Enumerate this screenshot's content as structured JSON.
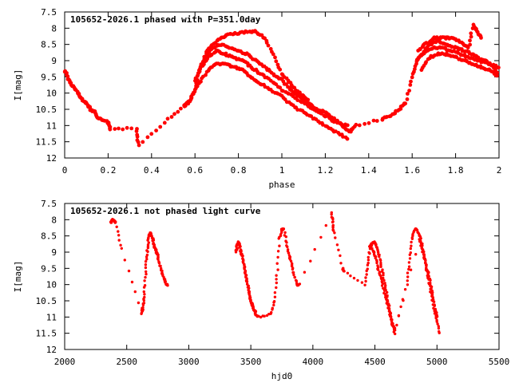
{
  "chart_data": [
    {
      "type": "scatter",
      "title": "105652-2026.1 phased with P=351.0day",
      "xlabel": "phase",
      "ylabel": "I[mag]",
      "xlim": [
        0,
        2
      ],
      "ylim": [
        12,
        7.5
      ],
      "y_inverted": true,
      "grid": false,
      "legend": "none",
      "marker_color": "#ff0000",
      "xticks": [
        0,
        0.2,
        0.4,
        0.6,
        0.8,
        1,
        1.2,
        1.4,
        1.6,
        1.8,
        2
      ],
      "xtick_labels": [
        "0",
        "0.2",
        "0.4",
        "0.6",
        "0.8",
        "1",
        "1.2",
        "1.4",
        "1.6",
        "1.8",
        "2"
      ],
      "yticks": [
        7.5,
        8,
        8.5,
        9,
        9.5,
        10,
        10.5,
        11,
        11.5,
        12
      ],
      "ytick_labels": [
        "7.5",
        "8",
        "8.5",
        "9",
        "9.5",
        "10",
        "10.5",
        "11",
        "11.5",
        "12"
      ],
      "series": [
        {
          "x": [
            0.0,
            0.02,
            0.04,
            0.06,
            0.08,
            0.1,
            0.12,
            0.14,
            0.16,
            0.2,
            0.21,
            0.33,
            0.34,
            0.46,
            0.55,
            0.57,
            0.6,
            0.62,
            0.65,
            0.68,
            0.72,
            0.76,
            0.8,
            0.84,
            0.88,
            0.92,
            0.96,
            1.0,
            1.04,
            1.08,
            1.12,
            1.16,
            1.2,
            1.24,
            1.28,
            1.31,
            1.34,
            1.46,
            1.5,
            1.54,
            1.57,
            1.6,
            1.62,
            1.65,
            1.68,
            1.72,
            1.76,
            1.8,
            1.84,
            1.88,
            1.9,
            1.93,
            1.96,
            2.0
          ],
          "y": [
            9.3,
            9.6,
            9.8,
            10.0,
            10.2,
            10.3,
            10.5,
            10.6,
            10.8,
            10.9,
            11.1,
            11.1,
            11.6,
            10.9,
            10.4,
            10.3,
            9.9,
            9.3,
            8.9,
            8.6,
            8.5,
            8.6,
            8.7,
            8.8,
            9.0,
            9.2,
            9.4,
            9.6,
            9.9,
            10.1,
            10.3,
            10.5,
            10.6,
            10.8,
            11.0,
            11.2,
            11.0,
            10.8,
            10.7,
            10.5,
            10.3,
            9.5,
            9.0,
            8.8,
            8.5,
            8.4,
            8.5,
            8.6,
            8.7,
            8.8,
            8.9,
            9.0,
            9.1,
            9.4
          ]
        },
        {
          "x": [
            0.6,
            0.63,
            0.66,
            0.7,
            0.74,
            0.78,
            0.82,
            0.86,
            0.9,
            0.95,
            1.0,
            1.05,
            1.1,
            1.15,
            1.2,
            1.25,
            1.3,
            1.62,
            1.66,
            1.7,
            1.74,
            1.78,
            1.82,
            1.86,
            1.9,
            1.95,
            2.0
          ],
          "y": [
            9.6,
            9.2,
            8.9,
            8.7,
            8.8,
            8.9,
            9.0,
            9.2,
            9.4,
            9.6,
            9.9,
            10.1,
            10.3,
            10.5,
            10.7,
            10.9,
            11.0,
            9.0,
            8.7,
            8.6,
            8.6,
            8.7,
            8.8,
            8.9,
            9.0,
            9.1,
            9.2
          ]
        },
        {
          "x": [
            0.62,
            0.65,
            0.68,
            0.72,
            0.76,
            0.8,
            0.85,
            0.88,
            0.92,
            0.96,
            1.0,
            1.04,
            1.08,
            1.12,
            1.63,
            1.66,
            1.7,
            1.74,
            1.78,
            1.82,
            1.86,
            1.88,
            1.9,
            1.92
          ],
          "y": [
            9.3,
            8.8,
            8.5,
            8.3,
            8.2,
            8.15,
            8.1,
            8.1,
            8.3,
            8.8,
            9.4,
            9.7,
            10.0,
            10.2,
            8.7,
            8.5,
            8.3,
            8.3,
            8.3,
            8.4,
            8.6,
            7.9,
            8.1,
            8.3
          ]
        },
        {
          "x": [
            0.55,
            0.58,
            0.62,
            0.66,
            0.7,
            0.74,
            0.78,
            0.82,
            0.86,
            0.9,
            0.95,
            1.0,
            1.05,
            1.1,
            1.15,
            1.2,
            1.25,
            1.3,
            1.64,
            1.68,
            1.72,
            1.76,
            1.8,
            1.84,
            1.88,
            1.92,
            1.96,
            2.0
          ],
          "y": [
            10.4,
            10.2,
            9.7,
            9.3,
            9.1,
            9.1,
            9.2,
            9.3,
            9.5,
            9.7,
            9.9,
            10.1,
            10.4,
            10.6,
            10.8,
            11.0,
            11.2,
            11.4,
            9.3,
            8.9,
            8.8,
            8.8,
            8.9,
            9.0,
            9.1,
            9.2,
            9.3,
            9.5
          ]
        }
      ]
    },
    {
      "type": "scatter",
      "title": "105652-2026.1 not phased light curve",
      "xlabel": "hjd0",
      "ylabel": "I[mag]",
      "xlim": [
        2000,
        5500
      ],
      "ylim": [
        12,
        7.5
      ],
      "y_inverted": true,
      "grid": false,
      "legend": "none",
      "marker_color": "#ff0000",
      "xticks": [
        2000,
        2500,
        3000,
        3500,
        4000,
        4500,
        5000,
        5500
      ],
      "xtick_labels": [
        "2000",
        "2500",
        "3000",
        "3500",
        "4000",
        "4500",
        "5000",
        "5500"
      ],
      "yticks": [
        7.5,
        8,
        8.5,
        9,
        9.5,
        10,
        10.5,
        11,
        11.5,
        12
      ],
      "ytick_labels": [
        "7.5",
        "8",
        "8.5",
        "9",
        "9.5",
        "10",
        "10.5",
        "11",
        "11.5",
        "12"
      ],
      "series": [
        {
          "x": [
            2370,
            2380,
            2390,
            2400,
            2410,
            2460,
            2620,
            2630,
            2640,
            2650,
            2660,
            2670,
            2680,
            2690,
            2700,
            2710,
            2720,
            2730,
            2740,
            2750,
            2760,
            2780,
            2800,
            2820,
            2830,
            3380,
            3390,
            3400,
            3410,
            3420,
            3430,
            3440,
            3450,
            3460,
            3470,
            3480,
            3490,
            3500,
            3510,
            3520,
            3530,
            3540,
            3560,
            3660,
            3690,
            3710,
            3730,
            3750,
            3770,
            3790,
            3810,
            3830,
            3850,
            3870,
            3890,
            4150,
            4160,
            4170,
            4240,
            4250,
            4420,
            4440,
            4460,
            4480,
            4500,
            4520,
            4540,
            4560,
            4580,
            4600,
            4620,
            4640,
            4660,
            4760,
            4780,
            4800,
            4820,
            4840,
            4860,
            4880,
            4900,
            4920,
            4940,
            4960,
            4980,
            5000,
            5020
          ],
          "y": [
            8.1,
            8.05,
            8.0,
            8.05,
            8.1,
            8.9,
            10.9,
            10.7,
            10.4,
            9.8,
            9.2,
            8.8,
            8.5,
            8.4,
            8.5,
            8.6,
            8.8,
            8.9,
            9.0,
            9.1,
            9.3,
            9.6,
            9.8,
            10.0,
            10.0,
            9.0,
            8.8,
            8.7,
            8.8,
            9.0,
            9.1,
            9.3,
            9.5,
            9.7,
            9.9,
            10.1,
            10.3,
            10.5,
            10.6,
            10.7,
            10.8,
            10.9,
            11.0,
            10.9,
            10.5,
            9.7,
            8.6,
            8.3,
            8.3,
            8.8,
            9.1,
            9.4,
            9.7,
            10.0,
            10.0,
            7.8,
            8.1,
            8.4,
            9.5,
            9.6,
            10.0,
            9.4,
            8.9,
            8.7,
            8.7,
            8.9,
            9.2,
            9.6,
            10.0,
            10.4,
            10.8,
            11.2,
            11.5,
            9.9,
            9.2,
            8.6,
            8.3,
            8.3,
            8.5,
            8.8,
            9.2,
            9.6,
            10.0,
            10.4,
            10.8,
            11.1,
            11.5
          ]
        },
        {
          "x": [
            4460,
            4480,
            4500,
            4520,
            4540,
            4560,
            4580,
            4600,
            4620,
            4640,
            4660,
            4860,
            4880,
            4900,
            4920,
            4940,
            4960,
            4980,
            5000
          ],
          "y": [
            8.8,
            8.9,
            9.1,
            9.4,
            9.7,
            10.0,
            10.3,
            10.6,
            10.9,
            11.2,
            11.4,
            8.6,
            8.9,
            9.2,
            9.5,
            9.8,
            10.2,
            10.6,
            11.0
          ]
        }
      ]
    }
  ]
}
